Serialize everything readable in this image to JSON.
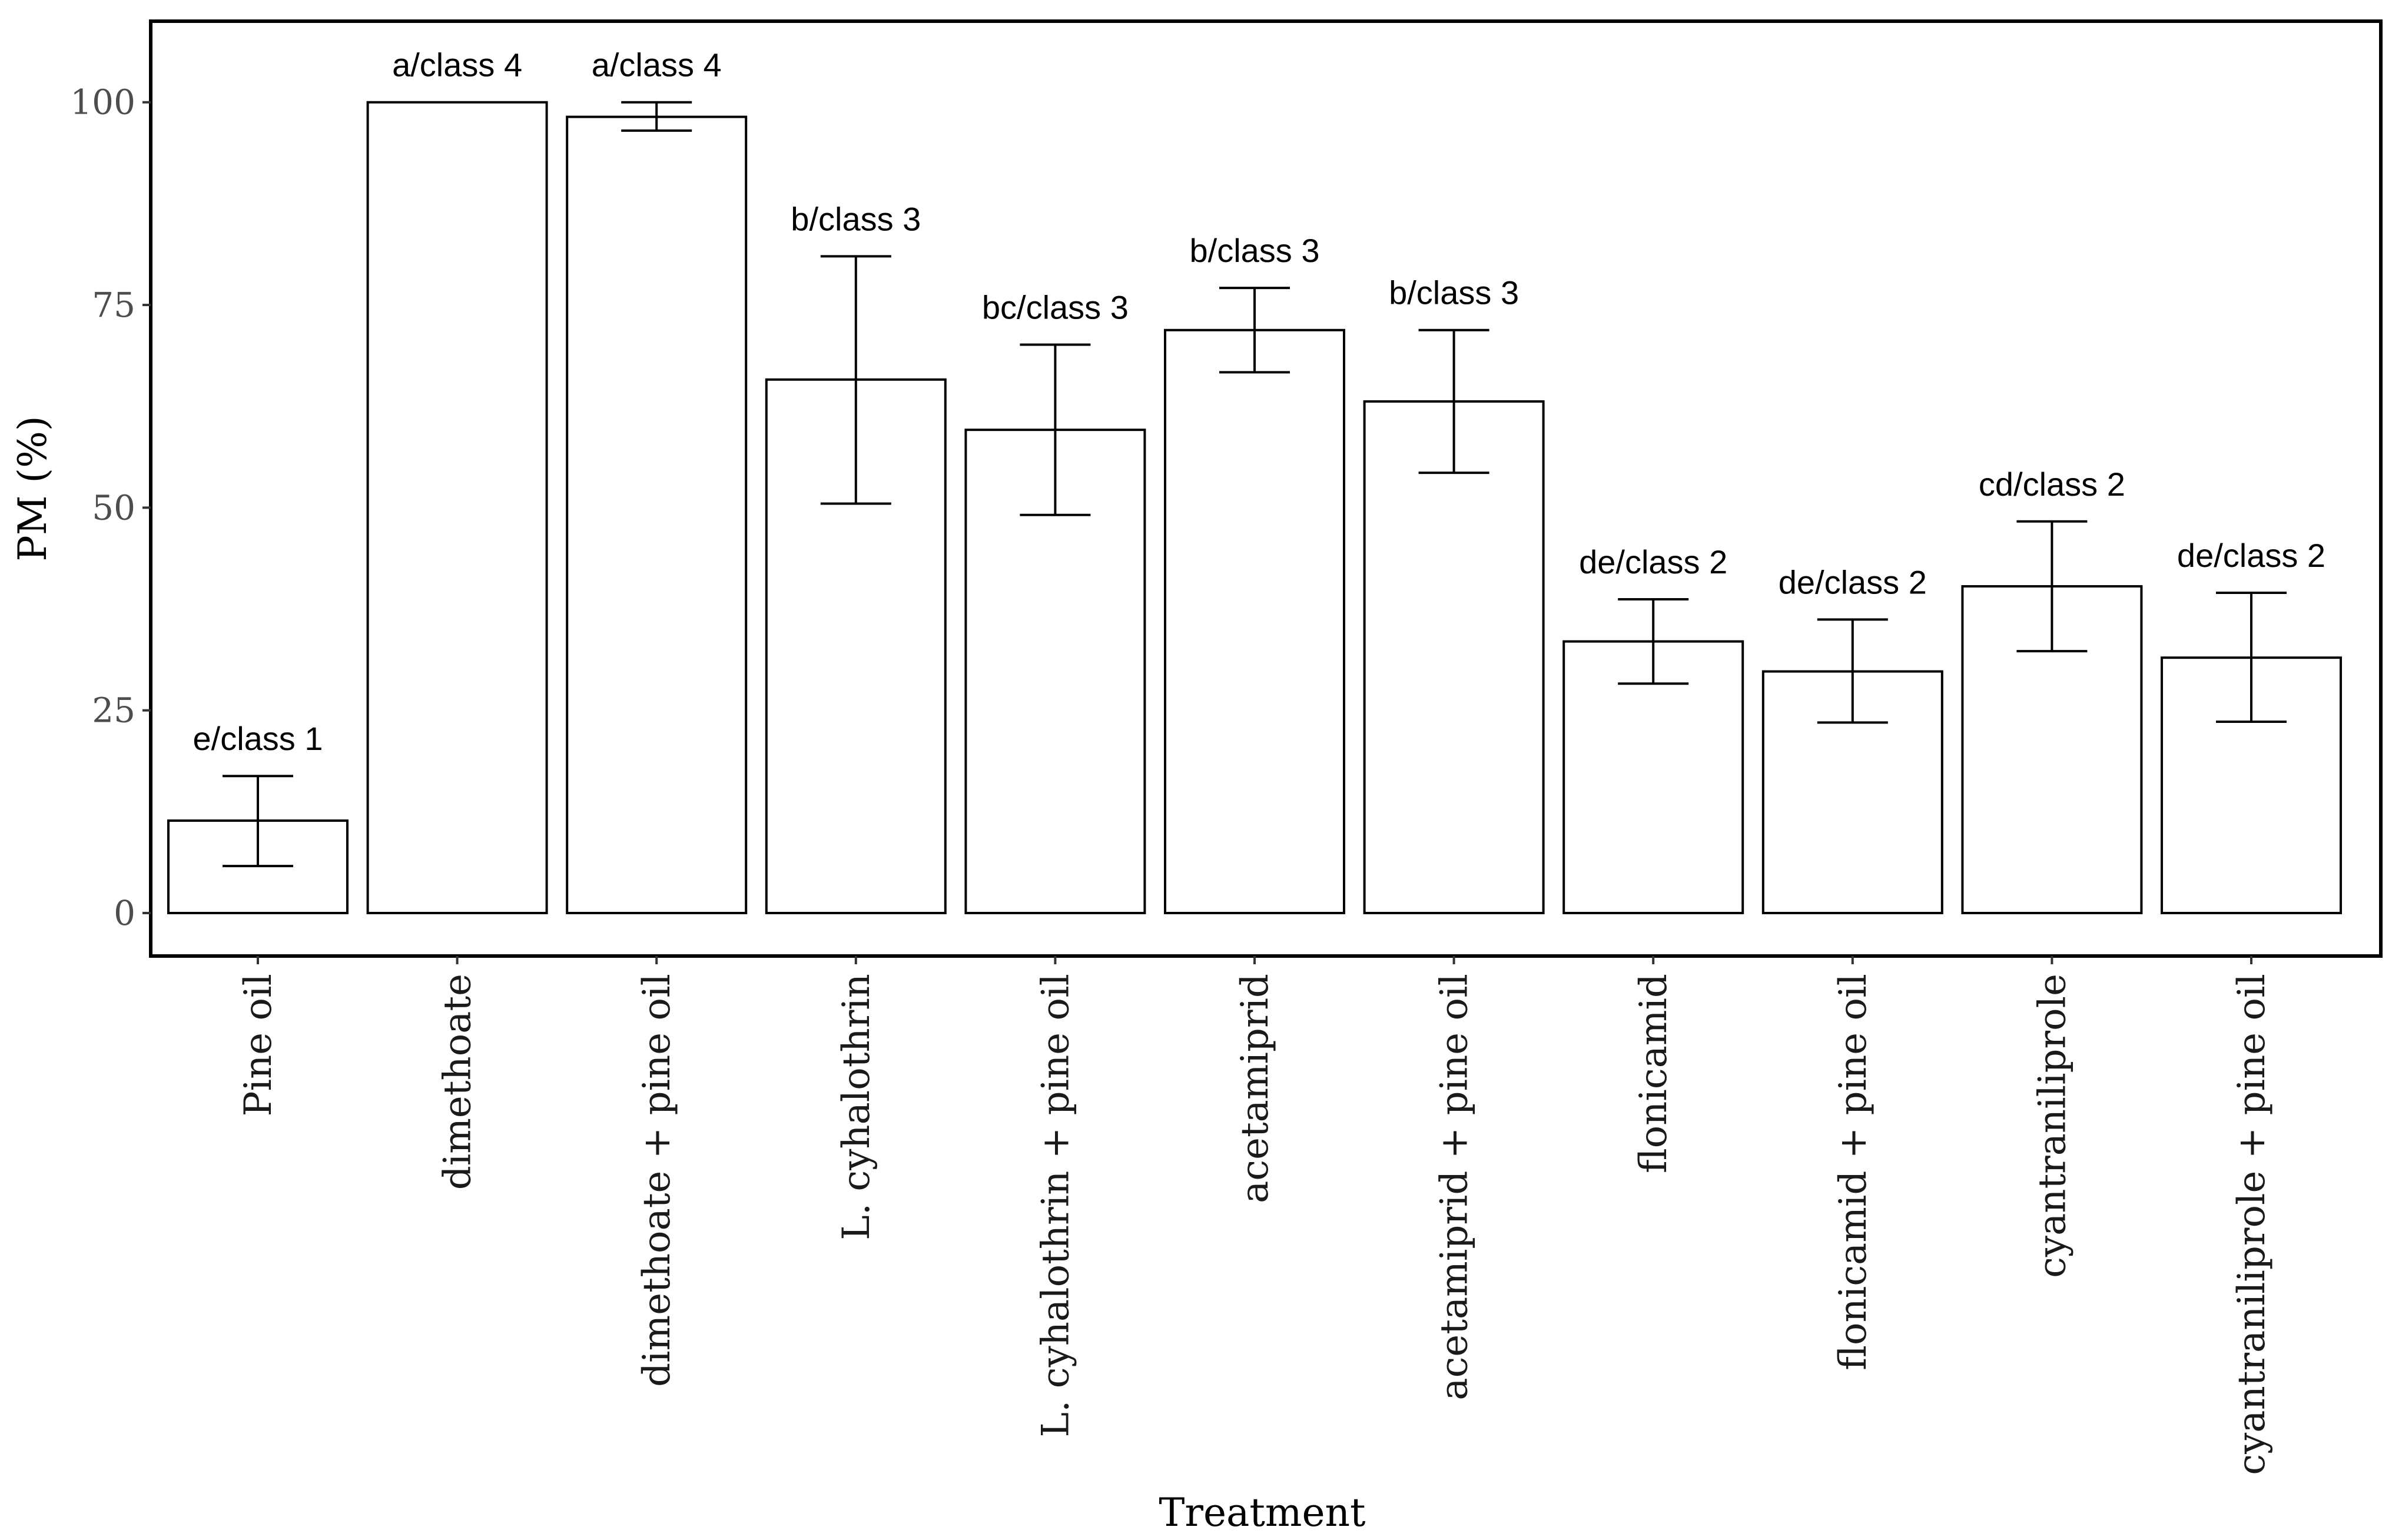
{
  "chart_data": {
    "type": "bar",
    "title": "",
    "xlabel": "Treatment",
    "ylabel": "PM (%)",
    "ylim": [
      -5.3,
      110
    ],
    "yticks": [
      0,
      25,
      50,
      75,
      100
    ],
    "grid": false,
    "categories": [
      "Pine oil",
      "dimethoate",
      "dimethoate + pine oil",
      "L. cyhalothrin",
      "L. cyhalothrin + pine oil",
      "acetamiprid",
      "acetamiprid + pine oil",
      "flonicamid",
      "flonicamid + pine oil",
      "cyantraniliprole",
      "cyantraniliprole + pine oil"
    ],
    "values": [
      11.4,
      100,
      98.2,
      65.8,
      59.6,
      71.9,
      63.1,
      33.5,
      29.8,
      40.3,
      31.5
    ],
    "error_low": [
      5.8,
      100,
      96.5,
      50.5,
      49.1,
      66.7,
      54.3,
      28.3,
      23.5,
      32.3,
      23.6
    ],
    "error_high": [
      16.9,
      100,
      100,
      81.0,
      70.1,
      77.1,
      71.9,
      38.7,
      36.2,
      48.3,
      39.5
    ],
    "annotations": [
      "e/class 1",
      "a/class 4",
      "a/class 4",
      "b/class 3",
      "bc/class 3",
      "b/class 3",
      "b/class 3",
      "de/class 2",
      "de/class 2",
      "cd/class 2",
      "de/class 2"
    ]
  }
}
